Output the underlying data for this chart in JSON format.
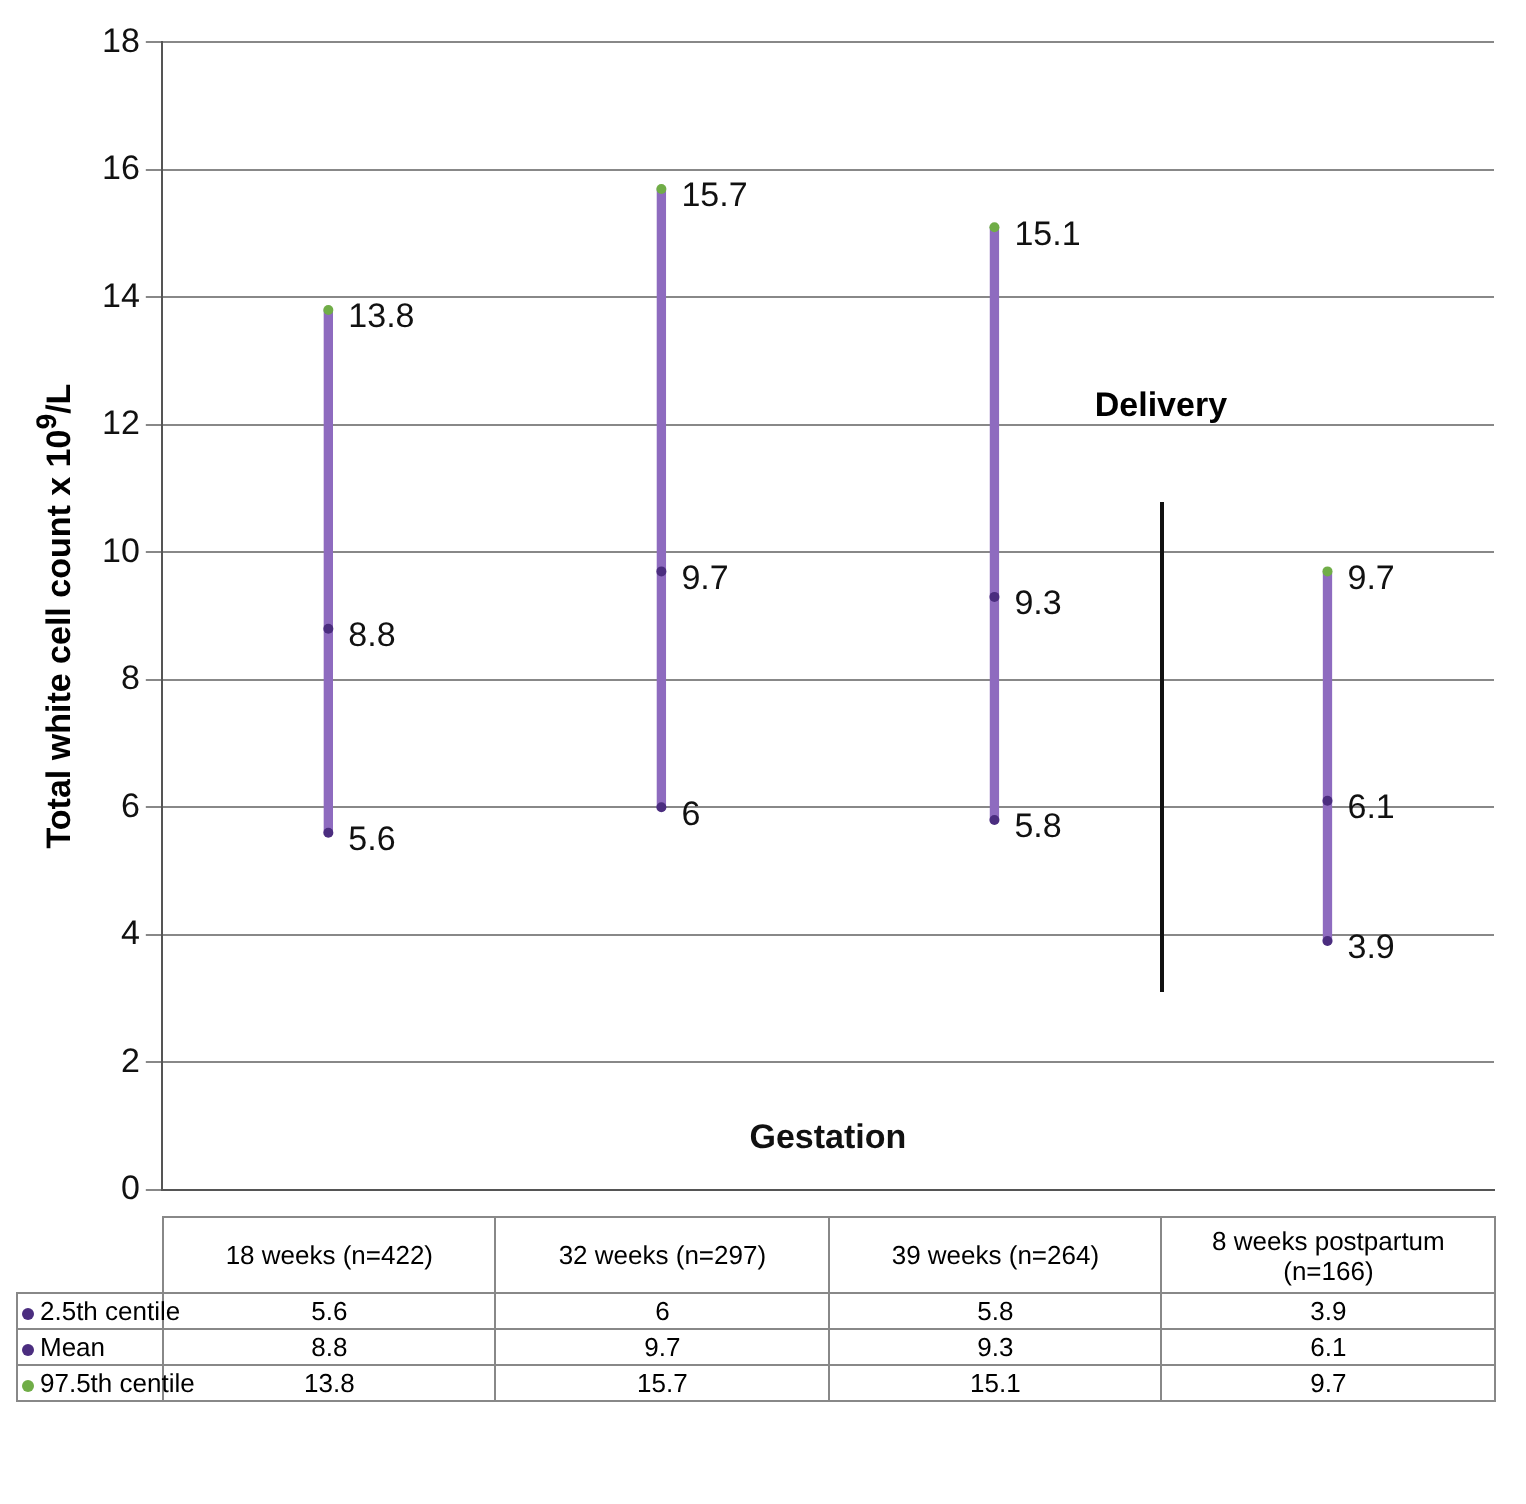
{
  "chart_data": {
    "type": "bar",
    "ylabel": "Total white cell count x 10$^{9}$/L",
    "xlabel": "Gestation",
    "categories": [
      "18 weeks (n=422)",
      "32 weeks (n=297)",
      "39 weeks (n=264)",
      "8 weeks postpartum (n=166)"
    ],
    "series": [
      {
        "color": "#8e6bbf",
        "base": [
          5.6,
          6,
          5.8,
          3.9
        ],
        "values": [
          8.2,
          9.7,
          9.3,
          5.8
        ]
      },
      {
        "type": "scatter",
        "name": "2.5th centile",
        "color": "#4b2d7f",
        "values": [
          5.6,
          6,
          5.8,
          3.9
        ],
        "value_labels": [
          "5.6",
          "6",
          "5.8",
          "3.9"
        ]
      },
      {
        "type": "scatter",
        "name": "Mean",
        "color": "#4b2d7f",
        "values": [
          8.8,
          9.7,
          9.3,
          6.1
        ],
        "value_labels": [
          "8.8",
          "9.7",
          "9.3",
          "6.1"
        ]
      },
      {
        "type": "scatter",
        "name": "97.5th centile",
        "color": "#70ad47",
        "values": [
          13.8,
          15.7,
          15.1,
          9.7
        ],
        "value_labels": [
          "13.8",
          "15.7",
          "15.1",
          "9.7"
        ]
      }
    ],
    "ylim": [
      0,
      18
    ],
    "yticks": [
      0,
      2,
      4,
      6,
      8,
      10,
      12,
      14,
      16,
      18
    ],
    "grid": "y",
    "legend": "bottom left",
    "marker": "circle",
    "tick_labels": "y",
    "annotations": [
      "Delivery"
    ]
  }
}
